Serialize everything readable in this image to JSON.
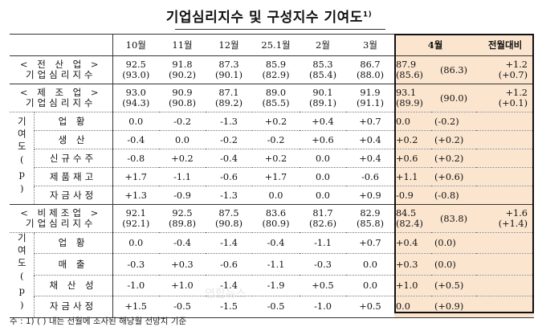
{
  "title": "기업심리지수 및 구성지수 기여도",
  "title_sup": "1)",
  "columns": [
    "10월",
    "11월",
    "12월",
    "25.1월",
    "2월",
    "3월",
    "4월",
    "전월대비"
  ],
  "sections": [
    {
      "name_line1": "< 전 산 업 >",
      "name_line2": "기업심리지수",
      "values": [
        "92.5",
        "91.8",
        "87.3",
        "85.9",
        "85.3",
        "86.7",
        "87.9",
        "",
        "+1.2"
      ],
      "paren": [
        "(93.0)",
        "(90.2)",
        "(90.1)",
        "(82.9)",
        "(85.4)",
        "(88.0)",
        "(85.6)",
        "(86.3)",
        "(+0.7)"
      ]
    },
    {
      "name_line1": "< 제 조 업 >",
      "name_line2": "기업심리지수",
      "values": [
        "93.0",
        "90.9",
        "87.1",
        "89.0",
        "90.1",
        "91.9",
        "93.1",
        "",
        "+1.2"
      ],
      "paren": [
        "(94.3)",
        "(90.8)",
        "(89.2)",
        "(85.5)",
        "(89.1)",
        "(91.1)",
        "(89.9)",
        "(90.0)",
        "(+0.1)"
      ],
      "contrib_label": "기여도(p)",
      "rows": [
        {
          "label": "업 황",
          "values": [
            "0.0",
            "-0.2",
            "-1.3",
            "+0.2",
            "+0.4",
            "+0.7",
            "0.0",
            "(-0.2)"
          ]
        },
        {
          "label": "생 산",
          "values": [
            "-0.4",
            "0.0",
            "-0.2",
            "-0.2",
            "+0.6",
            "+0.4",
            "+0.2",
            "(+0.2)"
          ]
        },
        {
          "label": "신규수주",
          "values": [
            "-0.8",
            "+0.2",
            "-0.4",
            "+0.2",
            "0.0",
            "+0.4",
            "+0.6",
            "(+0.2)"
          ]
        },
        {
          "label": "제품재고",
          "values": [
            "+1.7",
            "-1.1",
            "-0.6",
            "+1.7",
            "0.0",
            "-0.6",
            "+1.1",
            "(+0.6)"
          ]
        },
        {
          "label": "자금사정",
          "values": [
            "+1.3",
            "-0.9",
            "-1.3",
            "0.0",
            "0.0",
            "+0.9",
            "-0.9",
            "(-0.8)"
          ]
        }
      ]
    },
    {
      "name_line1": "< 비제조업 >",
      "name_line2": "기업심리지수",
      "values": [
        "92.1",
        "92.5",
        "87.5",
        "83.6",
        "81.7",
        "82.9",
        "84.5",
        "",
        "+1.6"
      ],
      "paren": [
        "(92.1)",
        "(89.8)",
        "(90.8)",
        "(80.9)",
        "(82.6)",
        "(85.8)",
        "(82.4)",
        "(83.8)",
        "(+1.4)"
      ],
      "contrib_label": "기여도(p)",
      "rows": [
        {
          "label": "업 황",
          "values": [
            "0.0",
            "-0.4",
            "-1.4",
            "-0.4",
            "-1.1",
            "+0.7",
            "+0.4",
            "(0.0)"
          ]
        },
        {
          "label": "매 출",
          "values": [
            "-0.3",
            "+0.3",
            "-0.6",
            "-1.1",
            "-0.3",
            "0.0",
            "+0.3",
            "(0.0)"
          ]
        },
        {
          "label": "채 산 성",
          "values": [
            "-1.0",
            "+1.0",
            "-1.4",
            "-1.9",
            "+0.5",
            "0.0",
            "+1.0",
            "(+0.5)"
          ]
        },
        {
          "label": "자금사정",
          "values": [
            "+1.5",
            "-0.5",
            "-1.5",
            "-0.5",
            "-1.0",
            "+0.5",
            "0.0",
            "(+0.9)"
          ]
        }
      ]
    }
  ],
  "note": "주 : 1) (    ) 내는 전월에 조사된 해당월 전망치 기준"
}
